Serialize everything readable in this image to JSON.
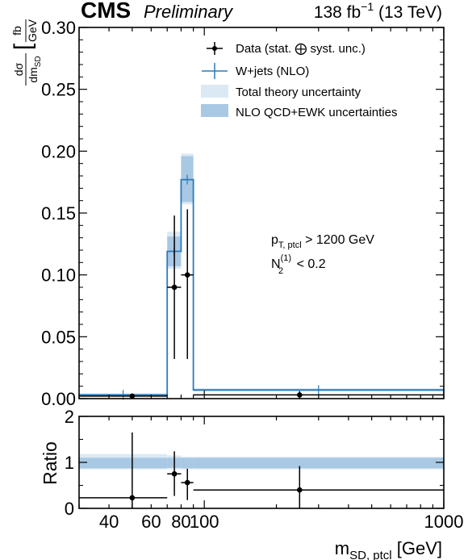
{
  "header": {
    "experiment": "CMS",
    "status": "Preliminary",
    "lumi": "138 fb",
    "lumi_exp": "−1",
    "energy": " (13 TeV)"
  },
  "annotation": {
    "cut1_var": "p",
    "cut1_sub": "T, ptcl",
    "cut1_rest": " > 1200 GeV",
    "cut2_var": "N",
    "cut2_sup": "(1)",
    "cut2_sub": "2",
    "cut2_rest": " < 0.2"
  },
  "legend": {
    "data": "Data (stat. ⨁ syst. unc.)",
    "wjets": "W+jets (NLO)",
    "total_theory": "Total theory uncertainty",
    "nlo_unc": "NLO QCD+EWK uncertainties"
  },
  "axes": {
    "ylabel_num": "dσ",
    "ylabel_den": "dm",
    "ylabel_den_sub": "SD",
    "ylabel_unit_num": "fb",
    "ylabel_unit_den": "GeV",
    "ratio_label": "Ratio",
    "xlabel_main": "m",
    "xlabel_sub": "SD, ptcl",
    "xlabel_unit": " [GeV]"
  },
  "colors": {
    "prediction": "#2b7bba",
    "nlo_band": "#a9c8e3",
    "total_band": "#dbe9f5",
    "data": "#000000"
  },
  "chart_data": [
    {
      "type": "step",
      "title": "",
      "xscale": "log",
      "xlim": [
        30,
        1000
      ],
      "ylim": [
        0,
        0.3
      ],
      "yticks": [
        0.0,
        0.05,
        0.1,
        0.15,
        0.2,
        0.25,
        0.3
      ],
      "ytick_labels": [
        "0.00",
        "0.05",
        "0.10",
        "0.15",
        "0.20",
        "0.25",
        "0.30"
      ],
      "bins": [
        [
          30,
          70
        ],
        [
          70,
          80
        ],
        [
          80,
          90
        ],
        [
          90,
          1000
        ]
      ],
      "prediction": [
        0.003,
        0.119,
        0.177,
        0.007
      ],
      "nlo_unc_band": [
        [
          0.002,
          0.004
        ],
        [
          0.107,
          0.131
        ],
        [
          0.159,
          0.196
        ],
        [
          0.006,
          0.008
        ]
      ],
      "total_theory_band": [
        [
          0.002,
          0.004
        ],
        [
          0.105,
          0.135
        ],
        [
          0.157,
          0.198
        ],
        [
          0.006,
          0.008
        ]
      ],
      "data": [
        {
          "x": 50,
          "y": 0.002,
          "y_lo": 0.0,
          "y_hi": 0.004
        },
        {
          "x": 75,
          "y": 0.09,
          "y_lo": 0.032,
          "y_hi": 0.148
        },
        {
          "x": 85,
          "y": 0.1,
          "y_lo": 0.032,
          "y_hi": 0.153
        },
        {
          "x": 250,
          "y": 0.003,
          "y_lo": 0.0,
          "y_hi": 0.006
        }
      ]
    },
    {
      "type": "ratio",
      "xscale": "log",
      "xlim": [
        30,
        1000
      ],
      "ylim": [
        0,
        2
      ],
      "yticks": [
        0,
        1,
        2
      ],
      "ytick_labels": [
        "0",
        "1",
        "2"
      ],
      "xticks": [
        40,
        60,
        80,
        100,
        1000
      ],
      "xtick_labels": [
        "40",
        "60",
        "80",
        "100",
        "1000"
      ],
      "bins": [
        [
          30,
          70
        ],
        [
          70,
          80
        ],
        [
          80,
          90
        ],
        [
          90,
          1000
        ]
      ],
      "nlo_unc_band": [
        [
          0.87,
          1.1
        ],
        [
          0.88,
          1.1
        ],
        [
          0.87,
          1.1
        ],
        [
          0.87,
          1.1
        ]
      ],
      "total_theory_band": [
        [
          0.85,
          1.18
        ],
        [
          0.85,
          1.15
        ],
        [
          0.85,
          1.12
        ],
        [
          0.85,
          1.12
        ]
      ],
      "data": [
        {
          "x": 50,
          "y": 0.23,
          "y_lo": 0.0,
          "y_hi": 1.65
        },
        {
          "x": 75,
          "y": 0.75,
          "y_lo": 0.27,
          "y_hi": 1.24
        },
        {
          "x": 85,
          "y": 0.56,
          "y_lo": 0.18,
          "y_hi": 0.86
        },
        {
          "x": 250,
          "y": 0.4,
          "y_lo": 0.0,
          "y_hi": 0.92
        }
      ]
    }
  ]
}
